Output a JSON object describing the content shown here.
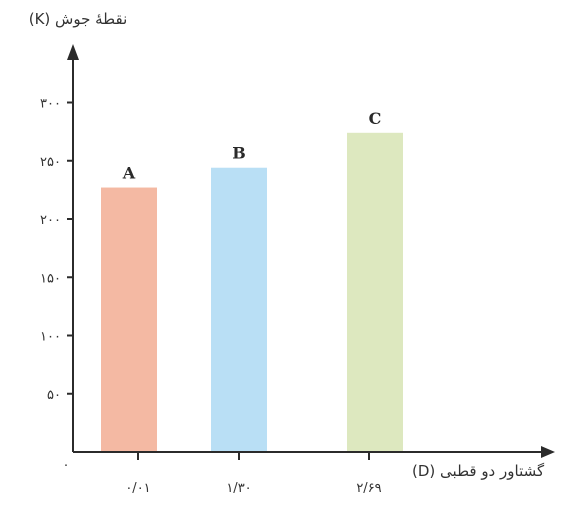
{
  "chart_data": {
    "type": "bar",
    "ylabel": "نقطهٔ جوش (K)",
    "xlabel": "گشتاور دو قطبی (D)",
    "origin_label": "۰",
    "ylim": [
      0,
      300
    ],
    "yticks": [
      {
        "value": 50,
        "label": "۵۰"
      },
      {
        "value": 100,
        "label": "۱۰۰"
      },
      {
        "value": 150,
        "label": "۱۵۰"
      },
      {
        "value": 200,
        "label": "۲۰۰"
      },
      {
        "value": 250,
        "label": "۲۵۰"
      },
      {
        "value": 300,
        "label": "۳۰۰"
      }
    ],
    "x": [
      0.01,
      1.3,
      2.69
    ],
    "bars": [
      {
        "name": "A",
        "x_label": "۰/۰۱",
        "value": 227,
        "color": "#f4b9a3"
      },
      {
        "name": "B",
        "x_label": "۱/۳۰",
        "value": 244,
        "color": "#b9dff5"
      },
      {
        "name": "C",
        "x_label": "۲/۶۹",
        "value": 274,
        "color": "#dde8bf"
      }
    ],
    "axis_color": "#2b2b2b",
    "grid": false
  }
}
